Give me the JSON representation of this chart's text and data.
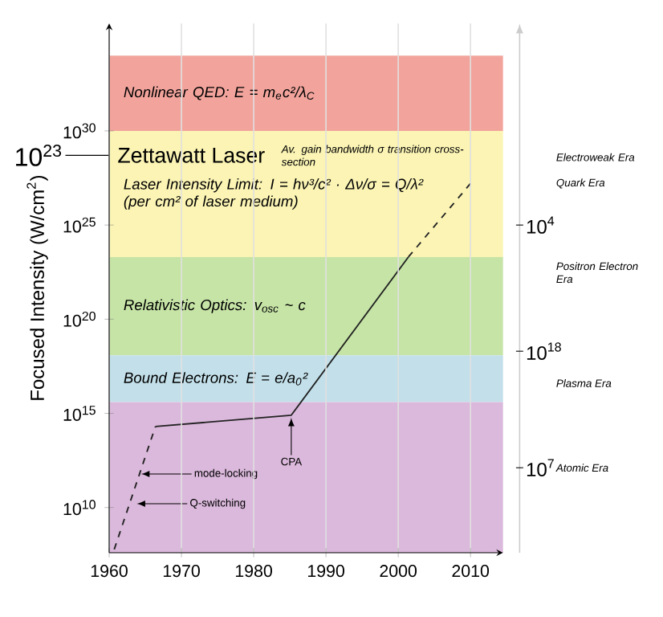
{
  "chart_data": {
    "type": "line",
    "ylabel": "Focused Intensity (W/cm$^{2}$)",
    "log": true,
    "grid": "x",
    "xlim": [
      1960,
      2014.5
    ],
    "xticks": [
      1960,
      1970,
      1980,
      1990,
      2000,
      2010
    ],
    "ylim": [
      40000000.0,
      5e+35
    ],
    "yticks": [
      {
        "value": 10000000000.0,
        "label": "10$^{10}$"
      },
      {
        "value": 1000000000000000.0,
        "label": "10$^{15}$"
      },
      {
        "value": 1e+20,
        "label": "10$^{20}$"
      },
      {
        "value": 1e+25,
        "label": "10$^{25}$"
      },
      {
        "value": 1e+30,
        "label": "10$^{30}$"
      }
    ],
    "series": [
      {
        "x": [
          1960.7,
          1966.4
        ],
        "values": [
          60000000.0,
          200000000000000.0
        ],
        "color": "#222222",
        "line_style": "dashed"
      },
      {
        "x": [
          1966.4,
          1985.2,
          2001.4
        ],
        "values": [
          200000000000000.0,
          800000000000000.0,
          2e+23
        ],
        "color": "#222222",
        "line_style": "solid"
      },
      {
        "x": [
          2001.4,
          2010
        ],
        "values": [
          2e+23,
          1.6e+27
        ],
        "color": "#222222",
        "line_style": "dashed"
      }
    ],
    "bands": [
      {
        "axis": "y",
        "from": 1e+30,
        "to": 1e+34,
        "label": "Nonlinear QED: E = m$_{e}$c²/λ$_{C}$",
        "color": "#f2a49c"
      },
      {
        "axis": "y",
        "from": 2e+23,
        "to": 1e+30,
        "label": "Laser Intensity Limit: I = hν³/c² · Δν/σ = Q/λ² (per cm² of laser medium)",
        "color": "#fbf4b4"
      },
      {
        "axis": "y",
        "from": 1.2e+18,
        "to": 2e+23,
        "label": "Relativistic Optics: v$_{osc}$ ~ c",
        "color": "#c6e4a6"
      },
      {
        "axis": "y",
        "from": 4000000000000000.0,
        "to": 1.2e+18,
        "label": "Bound Electrons: E = e/a$_{0}$²",
        "color": "#c3e0ea"
      },
      {
        "axis": "y",
        "from": 40000000.0,
        "to": 4000000000000000.0,
        "label": null,
        "color": "#dbb9dc"
      }
    ],
    "annotations": [
      {
        "text": "10$^{23}$",
        "x": 1960,
        "y": 5e+28
      },
      "Zettawatt Laser",
      "Av. gain bandwidth σ transition cross-section",
      "Electroweak Era",
      "Quark Era",
      "Positron Electron Era",
      "Plasma Era",
      "Atomic Era",
      "10$^{4}$",
      "10$^{18}$",
      "10$^{7}$",
      {
        "text": "mode-locking",
        "x": 1964.4,
        "y": 600000000000.0
      },
      {
        "text": "Q-switching",
        "x": 1963.8,
        "y": 16000000000.0
      },
      {
        "text": "CPA",
        "x": 1985.2,
        "y": 600000000000000.0
      }
    ]
  }
}
